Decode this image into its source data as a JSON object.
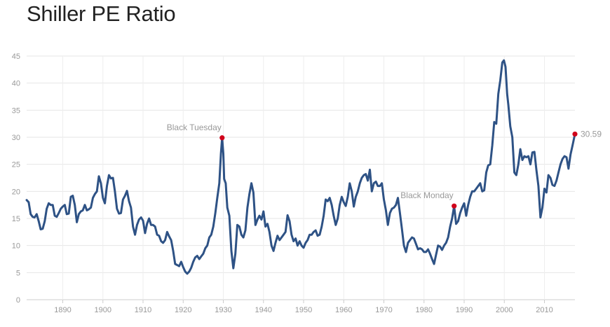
{
  "chart_data": {
    "type": "line",
    "title": "Shiller PE Ratio",
    "xlabel": "",
    "ylabel": "",
    "xlim": [
      1881,
      2017.6
    ],
    "ylim": [
      0,
      45
    ],
    "grid": true,
    "legend": "none",
    "line_color": "#2e5285",
    "marker_color": "#d0021b",
    "x_ticks": [
      1890,
      1900,
      1910,
      1920,
      1930,
      1940,
      1950,
      1960,
      1970,
      1980,
      1990,
      2000,
      2010
    ],
    "y_ticks": [
      0,
      5,
      10,
      15,
      20,
      25,
      30,
      35,
      40,
      45
    ],
    "series": [
      {
        "points": [
          [
            1881.0,
            18.4
          ],
          [
            1881.5,
            18.0
          ],
          [
            1882.0,
            15.8
          ],
          [
            1882.5,
            15.3
          ],
          [
            1883.0,
            15.2
          ],
          [
            1883.5,
            15.8
          ],
          [
            1884.0,
            14.5
          ],
          [
            1884.5,
            13.0
          ],
          [
            1885.0,
            13.1
          ],
          [
            1885.5,
            14.5
          ],
          [
            1886.0,
            16.8
          ],
          [
            1886.5,
            17.8
          ],
          [
            1887.0,
            17.5
          ],
          [
            1887.5,
            17.5
          ],
          [
            1888.0,
            15.5
          ],
          [
            1888.5,
            15.3
          ],
          [
            1889.0,
            16.0
          ],
          [
            1889.5,
            16.8
          ],
          [
            1890.0,
            17.2
          ],
          [
            1890.5,
            17.5
          ],
          [
            1891.0,
            15.8
          ],
          [
            1891.5,
            15.9
          ],
          [
            1892.0,
            19.0
          ],
          [
            1892.5,
            19.2
          ],
          [
            1893.0,
            17.5
          ],
          [
            1893.5,
            14.3
          ],
          [
            1894.0,
            15.8
          ],
          [
            1894.5,
            16.3
          ],
          [
            1895.0,
            16.5
          ],
          [
            1895.5,
            17.5
          ],
          [
            1896.0,
            16.5
          ],
          [
            1896.5,
            16.7
          ],
          [
            1897.0,
            17.0
          ],
          [
            1897.5,
            18.8
          ],
          [
            1898.0,
            19.5
          ],
          [
            1898.5,
            20.0
          ],
          [
            1899.0,
            22.8
          ],
          [
            1899.5,
            21.5
          ],
          [
            1900.0,
            18.8
          ],
          [
            1900.5,
            17.8
          ],
          [
            1901.0,
            21.0
          ],
          [
            1901.5,
            23.0
          ],
          [
            1902.0,
            22.4
          ],
          [
            1902.5,
            22.5
          ],
          [
            1903.0,
            20.0
          ],
          [
            1903.5,
            16.8
          ],
          [
            1904.0,
            15.9
          ],
          [
            1904.5,
            16.0
          ],
          [
            1905.0,
            18.5
          ],
          [
            1905.5,
            19.2
          ],
          [
            1906.0,
            20.1
          ],
          [
            1906.5,
            18.2
          ],
          [
            1907.0,
            17.0
          ],
          [
            1907.5,
            13.5
          ],
          [
            1908.0,
            12.0
          ],
          [
            1908.5,
            13.8
          ],
          [
            1909.0,
            14.8
          ],
          [
            1909.5,
            15.2
          ],
          [
            1910.0,
            14.6
          ],
          [
            1910.5,
            12.3
          ],
          [
            1911.0,
            14.0
          ],
          [
            1911.5,
            15.0
          ],
          [
            1912.0,
            13.8
          ],
          [
            1912.5,
            13.8
          ],
          [
            1913.0,
            13.5
          ],
          [
            1913.5,
            12.0
          ],
          [
            1914.0,
            11.8
          ],
          [
            1914.5,
            10.8
          ],
          [
            1915.0,
            10.5
          ],
          [
            1915.5,
            11.0
          ],
          [
            1916.0,
            12.5
          ],
          [
            1916.5,
            11.7
          ],
          [
            1917.0,
            11.0
          ],
          [
            1917.5,
            9.0
          ],
          [
            1918.0,
            6.6
          ],
          [
            1918.5,
            6.4
          ],
          [
            1919.0,
            6.2
          ],
          [
            1919.5,
            7.0
          ],
          [
            1920.0,
            6.0
          ],
          [
            1920.5,
            5.2
          ],
          [
            1921.0,
            4.8
          ],
          [
            1921.5,
            5.2
          ],
          [
            1922.0,
            5.9
          ],
          [
            1922.5,
            7.0
          ],
          [
            1923.0,
            7.8
          ],
          [
            1923.5,
            8.1
          ],
          [
            1924.0,
            7.5
          ],
          [
            1924.5,
            8.0
          ],
          [
            1925.0,
            8.5
          ],
          [
            1925.5,
            9.5
          ],
          [
            1926.0,
            10.0
          ],
          [
            1926.5,
            11.5
          ],
          [
            1927.0,
            12.0
          ],
          [
            1927.5,
            13.5
          ],
          [
            1928.0,
            16.0
          ],
          [
            1928.5,
            18.8
          ],
          [
            1929.0,
            21.5
          ],
          [
            1929.4,
            27.0
          ],
          [
            1929.7,
            29.9
          ],
          [
            1930.0,
            27.0
          ],
          [
            1930.2,
            22.3
          ],
          [
            1930.6,
            21.5
          ],
          [
            1931.0,
            17.0
          ],
          [
            1931.5,
            15.5
          ],
          [
            1932.0,
            9.0
          ],
          [
            1932.5,
            5.8
          ],
          [
            1933.0,
            8.5
          ],
          [
            1933.5,
            13.8
          ],
          [
            1934.0,
            13.5
          ],
          [
            1934.5,
            12.0
          ],
          [
            1935.0,
            11.5
          ],
          [
            1935.5,
            12.8
          ],
          [
            1936.0,
            17.0
          ],
          [
            1936.5,
            19.5
          ],
          [
            1937.0,
            21.5
          ],
          [
            1937.5,
            19.8
          ],
          [
            1938.0,
            13.8
          ],
          [
            1938.5,
            14.8
          ],
          [
            1939.0,
            15.5
          ],
          [
            1939.5,
            14.8
          ],
          [
            1940.0,
            16.3
          ],
          [
            1940.5,
            13.5
          ],
          [
            1941.0,
            14.0
          ],
          [
            1941.5,
            12.5
          ],
          [
            1942.0,
            10.0
          ],
          [
            1942.5,
            9.0
          ],
          [
            1943.0,
            10.5
          ],
          [
            1943.5,
            11.8
          ],
          [
            1944.0,
            11.0
          ],
          [
            1944.5,
            11.5
          ],
          [
            1945.0,
            12.0
          ],
          [
            1945.5,
            12.5
          ],
          [
            1946.0,
            15.6
          ],
          [
            1946.5,
            14.5
          ],
          [
            1947.0,
            12.0
          ],
          [
            1947.5,
            10.8
          ],
          [
            1948.0,
            11.3
          ],
          [
            1948.5,
            10.0
          ],
          [
            1949.0,
            10.8
          ],
          [
            1949.5,
            10.0
          ],
          [
            1950.0,
            9.6
          ],
          [
            1950.5,
            10.5
          ],
          [
            1951.0,
            11.0
          ],
          [
            1951.5,
            12.0
          ],
          [
            1952.0,
            12.0
          ],
          [
            1952.5,
            12.5
          ],
          [
            1953.0,
            12.8
          ],
          [
            1953.5,
            11.8
          ],
          [
            1954.0,
            12.0
          ],
          [
            1954.5,
            13.5
          ],
          [
            1955.0,
            15.5
          ],
          [
            1955.5,
            18.5
          ],
          [
            1956.0,
            18.2
          ],
          [
            1956.5,
            18.8
          ],
          [
            1957.0,
            17.5
          ],
          [
            1957.5,
            15.5
          ],
          [
            1958.0,
            13.8
          ],
          [
            1958.5,
            15.0
          ],
          [
            1959.0,
            17.5
          ],
          [
            1959.5,
            19.0
          ],
          [
            1960.0,
            18.0
          ],
          [
            1960.5,
            17.3
          ],
          [
            1961.0,
            19.0
          ],
          [
            1961.5,
            21.5
          ],
          [
            1962.0,
            20.0
          ],
          [
            1962.5,
            17.2
          ],
          [
            1963.0,
            19.0
          ],
          [
            1963.5,
            20.0
          ],
          [
            1964.0,
            21.5
          ],
          [
            1964.5,
            22.5
          ],
          [
            1965.0,
            23.0
          ],
          [
            1965.5,
            23.2
          ],
          [
            1966.0,
            22.0
          ],
          [
            1966.5,
            24.0
          ],
          [
            1967.0,
            20.0
          ],
          [
            1967.5,
            21.5
          ],
          [
            1968.0,
            21.8
          ],
          [
            1968.5,
            21.0
          ],
          [
            1969.0,
            21.0
          ],
          [
            1969.5,
            21.5
          ],
          [
            1970.0,
            18.5
          ],
          [
            1970.5,
            16.5
          ],
          [
            1971.0,
            13.8
          ],
          [
            1971.5,
            16.0
          ],
          [
            1972.0,
            16.8
          ],
          [
            1972.5,
            17.0
          ],
          [
            1973.0,
            17.5
          ],
          [
            1973.5,
            18.8
          ],
          [
            1974.0,
            16.0
          ],
          [
            1974.5,
            13.0
          ],
          [
            1975.0,
            10.0
          ],
          [
            1975.5,
            8.8
          ],
          [
            1976.0,
            10.5
          ],
          [
            1976.5,
            11.0
          ],
          [
            1977.0,
            11.5
          ],
          [
            1977.5,
            11.3
          ],
          [
            1978.0,
            10.3
          ],
          [
            1978.5,
            9.3
          ],
          [
            1979.0,
            9.5
          ],
          [
            1979.5,
            9.3
          ],
          [
            1980.0,
            8.8
          ],
          [
            1980.5,
            8.8
          ],
          [
            1981.0,
            9.3
          ],
          [
            1981.5,
            8.5
          ],
          [
            1982.0,
            7.5
          ],
          [
            1982.5,
            6.6
          ],
          [
            1983.0,
            8.3
          ],
          [
            1983.5,
            10.0
          ],
          [
            1984.0,
            9.8
          ],
          [
            1984.5,
            9.2
          ],
          [
            1985.0,
            10.0
          ],
          [
            1985.5,
            10.5
          ],
          [
            1986.0,
            11.5
          ],
          [
            1986.5,
            13.5
          ],
          [
            1987.0,
            15.0
          ],
          [
            1987.5,
            17.3
          ],
          [
            1988.0,
            14.0
          ],
          [
            1988.5,
            14.5
          ],
          [
            1989.0,
            16.0
          ],
          [
            1989.5,
            17.0
          ],
          [
            1990.0,
            17.8
          ],
          [
            1990.5,
            15.5
          ],
          [
            1991.0,
            17.5
          ],
          [
            1991.5,
            19.0
          ],
          [
            1992.0,
            20.0
          ],
          [
            1992.5,
            20.0
          ],
          [
            1993.0,
            20.5
          ],
          [
            1993.5,
            21.0
          ],
          [
            1994.0,
            21.5
          ],
          [
            1994.5,
            20.0
          ],
          [
            1995.0,
            20.2
          ],
          [
            1995.5,
            23.5
          ],
          [
            1996.0,
            24.8
          ],
          [
            1996.5,
            25.0
          ],
          [
            1997.0,
            28.5
          ],
          [
            1997.5,
            32.8
          ],
          [
            1998.0,
            32.5
          ],
          [
            1998.5,
            38.0
          ],
          [
            1999.0,
            40.5
          ],
          [
            1999.5,
            43.8
          ],
          [
            1999.9,
            44.2
          ],
          [
            2000.3,
            43.0
          ],
          [
            2000.7,
            38.0
          ],
          [
            2001.0,
            36.0
          ],
          [
            2001.5,
            32.0
          ],
          [
            2002.0,
            30.0
          ],
          [
            2002.5,
            23.5
          ],
          [
            2003.0,
            23.0
          ],
          [
            2003.5,
            25.0
          ],
          [
            2004.0,
            27.8
          ],
          [
            2004.5,
            25.8
          ],
          [
            2005.0,
            26.5
          ],
          [
            2005.5,
            26.3
          ],
          [
            2006.0,
            26.5
          ],
          [
            2006.5,
            25.0
          ],
          [
            2007.0,
            27.2
          ],
          [
            2007.5,
            27.3
          ],
          [
            2008.0,
            24.0
          ],
          [
            2008.5,
            21.0
          ],
          [
            2009.0,
            15.2
          ],
          [
            2009.5,
            17.0
          ],
          [
            2010.0,
            20.5
          ],
          [
            2010.5,
            19.8
          ],
          [
            2011.0,
            23.0
          ],
          [
            2011.5,
            22.5
          ],
          [
            2012.0,
            21.2
          ],
          [
            2012.5,
            21.0
          ],
          [
            2013.0,
            22.0
          ],
          [
            2013.5,
            23.5
          ],
          [
            2014.0,
            25.0
          ],
          [
            2014.5,
            26.0
          ],
          [
            2015.0,
            26.5
          ],
          [
            2015.5,
            26.3
          ],
          [
            2016.0,
            24.2
          ],
          [
            2016.5,
            26.8
          ],
          [
            2017.0,
            28.5
          ],
          [
            2017.6,
            30.59
          ]
        ]
      }
    ],
    "annotations": [
      {
        "label": "Black Tuesday",
        "x": 1929.7,
        "y": 29.9,
        "position": "above-left"
      },
      {
        "label": "Black Monday",
        "x": 1987.5,
        "y": 17.3,
        "position": "above-left"
      },
      {
        "label": "30.59",
        "x": 2017.6,
        "y": 30.59,
        "position": "right"
      }
    ]
  }
}
